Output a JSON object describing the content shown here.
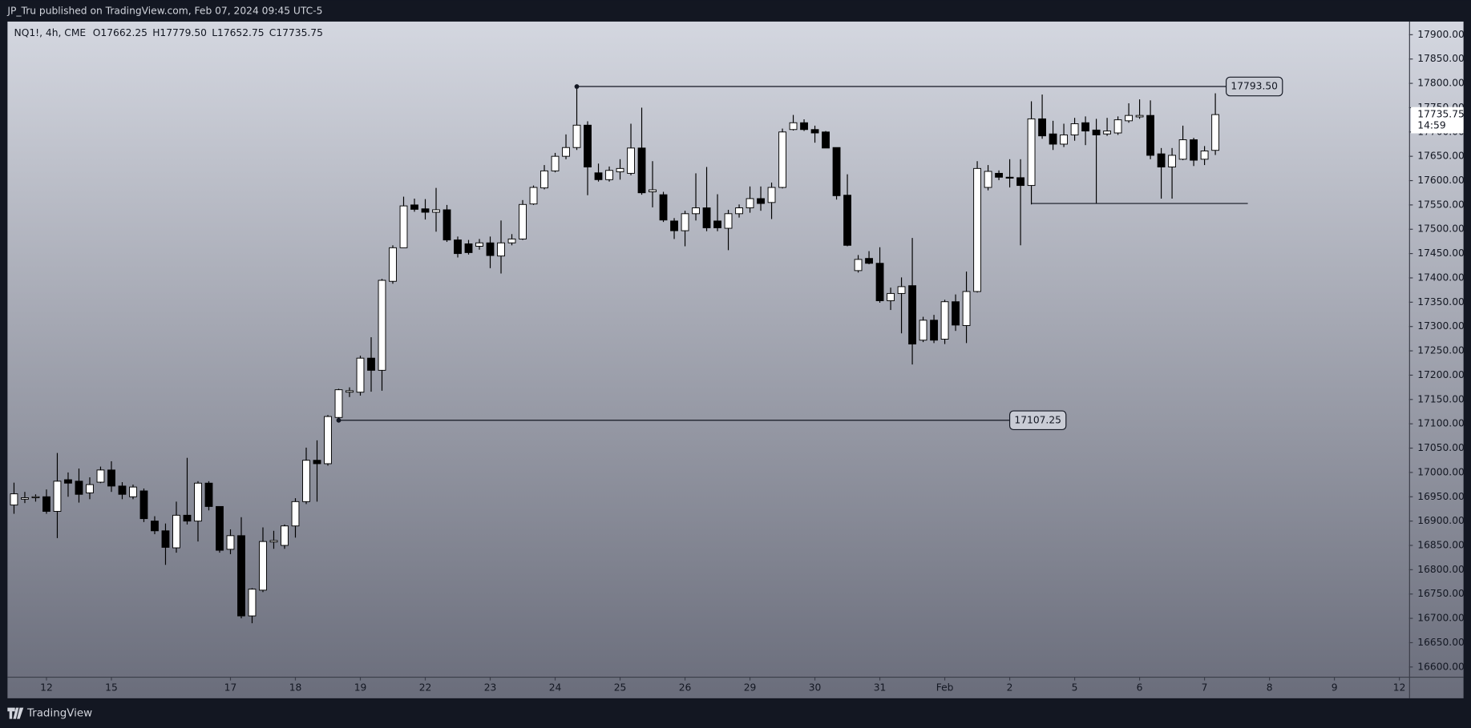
{
  "header": "JP_Tru published on TradingView.com, Feb 07, 2024 09:45 UTC-5",
  "footer": "TradingView",
  "chart_data": {
    "type": "candlestick",
    "symbol": "NQ1!, 4h, CME",
    "ohlc": [
      "O17662.25",
      "H17779.50",
      "L17652.75",
      "C17735.75"
    ],
    "colors": {
      "up": "#ffffff",
      "down": "#000000",
      "wick": "#000000"
    },
    "candles": {
      "open": [
        16933,
        16945,
        16948,
        16950,
        16920,
        16985,
        16982,
        16958,
        16980,
        17005,
        16972,
        16950,
        16962,
        16900,
        16880,
        16845,
        16912,
        16900,
        16978,
        16930,
        16842,
        16870,
        16705,
        16758,
        16857,
        16850,
        16890,
        16940,
        17025,
        17018,
        17113,
        17165,
        17165,
        17235,
        17210,
        17393,
        17462,
        17550,
        17542,
        17535,
        17540,
        17478,
        17470,
        17465,
        17472,
        17445,
        17472,
        17480,
        17552,
        17585,
        17620,
        17650,
        17668,
        17714,
        17616,
        17602,
        17618,
        17615,
        17667,
        17577,
        17571,
        17517,
        17497,
        17532,
        17544,
        17517,
        17502,
        17532,
        17544,
        17563,
        17555,
        17586,
        17705,
        17719,
        17705,
        17700,
        17668,
        17570,
        17415,
        17440,
        17430,
        17353,
        17368,
        17384,
        17272,
        17313,
        17274,
        17351,
        17302,
        17372,
        17586,
        17615,
        17607,
        17606,
        17590,
        17727,
        17696,
        17675,
        17694,
        17719,
        17704,
        17696,
        17698,
        17723,
        17731,
        17734,
        17655,
        17628,
        17644,
        17684,
        17644,
        17662.25
      ],
      "high": [
        16979,
        16960,
        16955,
        16965,
        17040,
        17000,
        17008,
        16990,
        17012,
        17023,
        16980,
        16975,
        16967,
        16910,
        16895,
        16940,
        17030,
        16982,
        16982,
        16930,
        16883,
        16908,
        16762,
        16887,
        16880,
        16893,
        16947,
        17051,
        17066,
        17118,
        17172,
        17175,
        17240,
        17278,
        17398,
        17467,
        17567,
        17563,
        17562,
        17585,
        17550,
        17485,
        17478,
        17480,
        17485,
        17518,
        17490,
        17560,
        17590,
        17632,
        17657,
        17695,
        17793.5,
        17722,
        17635,
        17629,
        17644,
        17717,
        17750,
        17640,
        17577,
        17523,
        17538,
        17615,
        17628,
        17572,
        17540,
        17551,
        17588,
        17588,
        17596,
        17707,
        17735,
        17726,
        17713,
        17702,
        17668,
        17613,
        17447,
        17455,
        17463,
        17380,
        17401,
        17482,
        17320,
        17324,
        17355,
        17366,
        17413,
        17640,
        17632,
        17621,
        17644,
        17644,
        17763,
        17777,
        17723,
        17717,
        17729,
        17732,
        17727,
        17729,
        17732,
        17759,
        17767,
        17765,
        17667,
        17667,
        17713,
        17688,
        17671,
        17779.5
      ],
      "low": [
        16915,
        16937,
        16940,
        16915,
        16865,
        16950,
        16938,
        16945,
        16978,
        16960,
        16945,
        16945,
        16898,
        16873,
        16810,
        16835,
        16893,
        16858,
        16922,
        16835,
        16832,
        16700,
        16690,
        16754,
        16843,
        16843,
        16866,
        16935,
        16940,
        17014,
        17107.25,
        17155,
        17158,
        17166,
        17168,
        17388,
        17462,
        17536,
        17520,
        17495,
        17474,
        17442,
        17448,
        17458,
        17420,
        17409,
        17467,
        17478,
        17550,
        17582,
        17617,
        17644,
        17663,
        17570,
        17598,
        17598,
        17602,
        17611,
        17571,
        17545,
        17515,
        17480,
        17465,
        17518,
        17496,
        17496,
        17457,
        17524,
        17534,
        17538,
        17521,
        17584,
        17703,
        17702,
        17678,
        17667,
        17561,
        17465,
        17411,
        17428,
        17349,
        17334,
        17286,
        17222,
        17268,
        17266,
        17264,
        17291,
        17266,
        17370,
        17580,
        17601,
        17586,
        17467,
        17551,
        17686,
        17663,
        17669,
        17682,
        17673,
        17553,
        17692,
        17694,
        17719,
        17727,
        17644,
        17563,
        17563,
        17642,
        17630,
        17632,
        17652.75
      ],
      "close": [
        16956,
        16948,
        16950,
        16920,
        16982,
        16978,
        16955,
        16975,
        17005,
        16972,
        16955,
        16970,
        16905,
        16880,
        16846,
        16912,
        16900,
        16978,
        16930,
        16840,
        16870,
        16705,
        16760,
        16858,
        16860,
        16890,
        16940,
        17025,
        17018,
        17115,
        17170,
        17168,
        17235,
        17210,
        17395,
        17462,
        17548,
        17541,
        17535,
        17540,
        17478,
        17450,
        17452,
        17472,
        17446,
        17472,
        17480,
        17551,
        17586,
        17620,
        17650,
        17668,
        17714,
        17628,
        17602,
        17621,
        17625,
        17667,
        17575,
        17581,
        17519,
        17497,
        17532,
        17544,
        17503,
        17503,
        17532,
        17544,
        17563,
        17553,
        17586,
        17700,
        17719,
        17705,
        17698,
        17667,
        17569,
        17467,
        17438,
        17430,
        17353,
        17368,
        17382,
        17264,
        17313,
        17272,
        17351,
        17303,
        17372,
        17625,
        17619,
        17607,
        17606,
        17590,
        17727,
        17692,
        17675,
        17694,
        17717,
        17702,
        17694,
        17702,
        17725,
        17734,
        17734,
        17652,
        17628,
        17652,
        17684,
        17642,
        17661,
        17735.75
      ]
    },
    "xlim": [
      -0.6,
      128.9
    ],
    "xticks": [
      {
        "value": 3,
        "label": "12"
      },
      {
        "value": 9,
        "label": "15"
      },
      {
        "value": 20,
        "label": "17"
      },
      {
        "value": 26,
        "label": "18"
      },
      {
        "value": 32,
        "label": "19"
      },
      {
        "value": 38,
        "label": "22"
      },
      {
        "value": 44,
        "label": "23"
      },
      {
        "value": 50,
        "label": "24"
      },
      {
        "value": 56,
        "label": "25"
      },
      {
        "value": 62,
        "label": "26"
      },
      {
        "value": 68,
        "label": "29"
      },
      {
        "value": 74,
        "label": "30"
      },
      {
        "value": 80,
        "label": "31"
      },
      {
        "value": 86,
        "label": "Feb"
      },
      {
        "value": 92,
        "label": "2"
      },
      {
        "value": 98,
        "label": "5"
      },
      {
        "value": 104,
        "label": "6"
      },
      {
        "value": 110,
        "label": "7"
      },
      {
        "value": 116,
        "label": "8"
      },
      {
        "value": 122,
        "label": "9"
      },
      {
        "value": 128,
        "label": "12"
      }
    ],
    "ylim": [
      16580,
      17927
    ],
    "yticks": [
      {
        "value": 16600,
        "label": "16600.00"
      },
      {
        "value": 16650,
        "label": "16650.00"
      },
      {
        "value": 16700,
        "label": "16700.00"
      },
      {
        "value": 16750,
        "label": "16750.00"
      },
      {
        "value": 16800,
        "label": "16800.00"
      },
      {
        "value": 16850,
        "label": "16850.00"
      },
      {
        "value": 16900,
        "label": "16900.00"
      },
      {
        "value": 16950,
        "label": "16950.00"
      },
      {
        "value": 17000,
        "label": "17000.00"
      },
      {
        "value": 17050,
        "label": "17050.00"
      },
      {
        "value": 17100,
        "label": "17100.00"
      },
      {
        "value": 17150,
        "label": "17150.00"
      },
      {
        "value": 17200,
        "label": "17200.00"
      },
      {
        "value": 17250,
        "label": "17250.00"
      },
      {
        "value": 17300,
        "label": "17300.00"
      },
      {
        "value": 17350,
        "label": "17350.00"
      },
      {
        "value": 17400,
        "label": "17400.00"
      },
      {
        "value": 17450,
        "label": "17450.00"
      },
      {
        "value": 17500,
        "label": "17500.00"
      },
      {
        "value": 17550,
        "label": "17550.00"
      },
      {
        "value": 17600,
        "label": "17600.00"
      },
      {
        "value": 17650,
        "label": "17650.00"
      },
      {
        "value": 17700,
        "label": "17700.00"
      },
      {
        "value": 17750,
        "label": "17750.00"
      },
      {
        "value": 17800,
        "label": "17800.00"
      },
      {
        "value": 17850,
        "label": "17850.00"
      },
      {
        "value": 17900,
        "label": "17900.00"
      }
    ],
    "levels": [
      {
        "value": 17793.5,
        "label": "17793.50",
        "x": [
          52,
          112
        ]
      },
      {
        "value": 17107.25,
        "label": "17107.25",
        "x": [
          30,
          92
        ]
      },
      {
        "value": 17553,
        "x": [
          94,
          114
        ]
      }
    ],
    "last_price": {
      "value": 17735.75,
      "label": "17735.75"
    },
    "countdown": "14:59"
  }
}
